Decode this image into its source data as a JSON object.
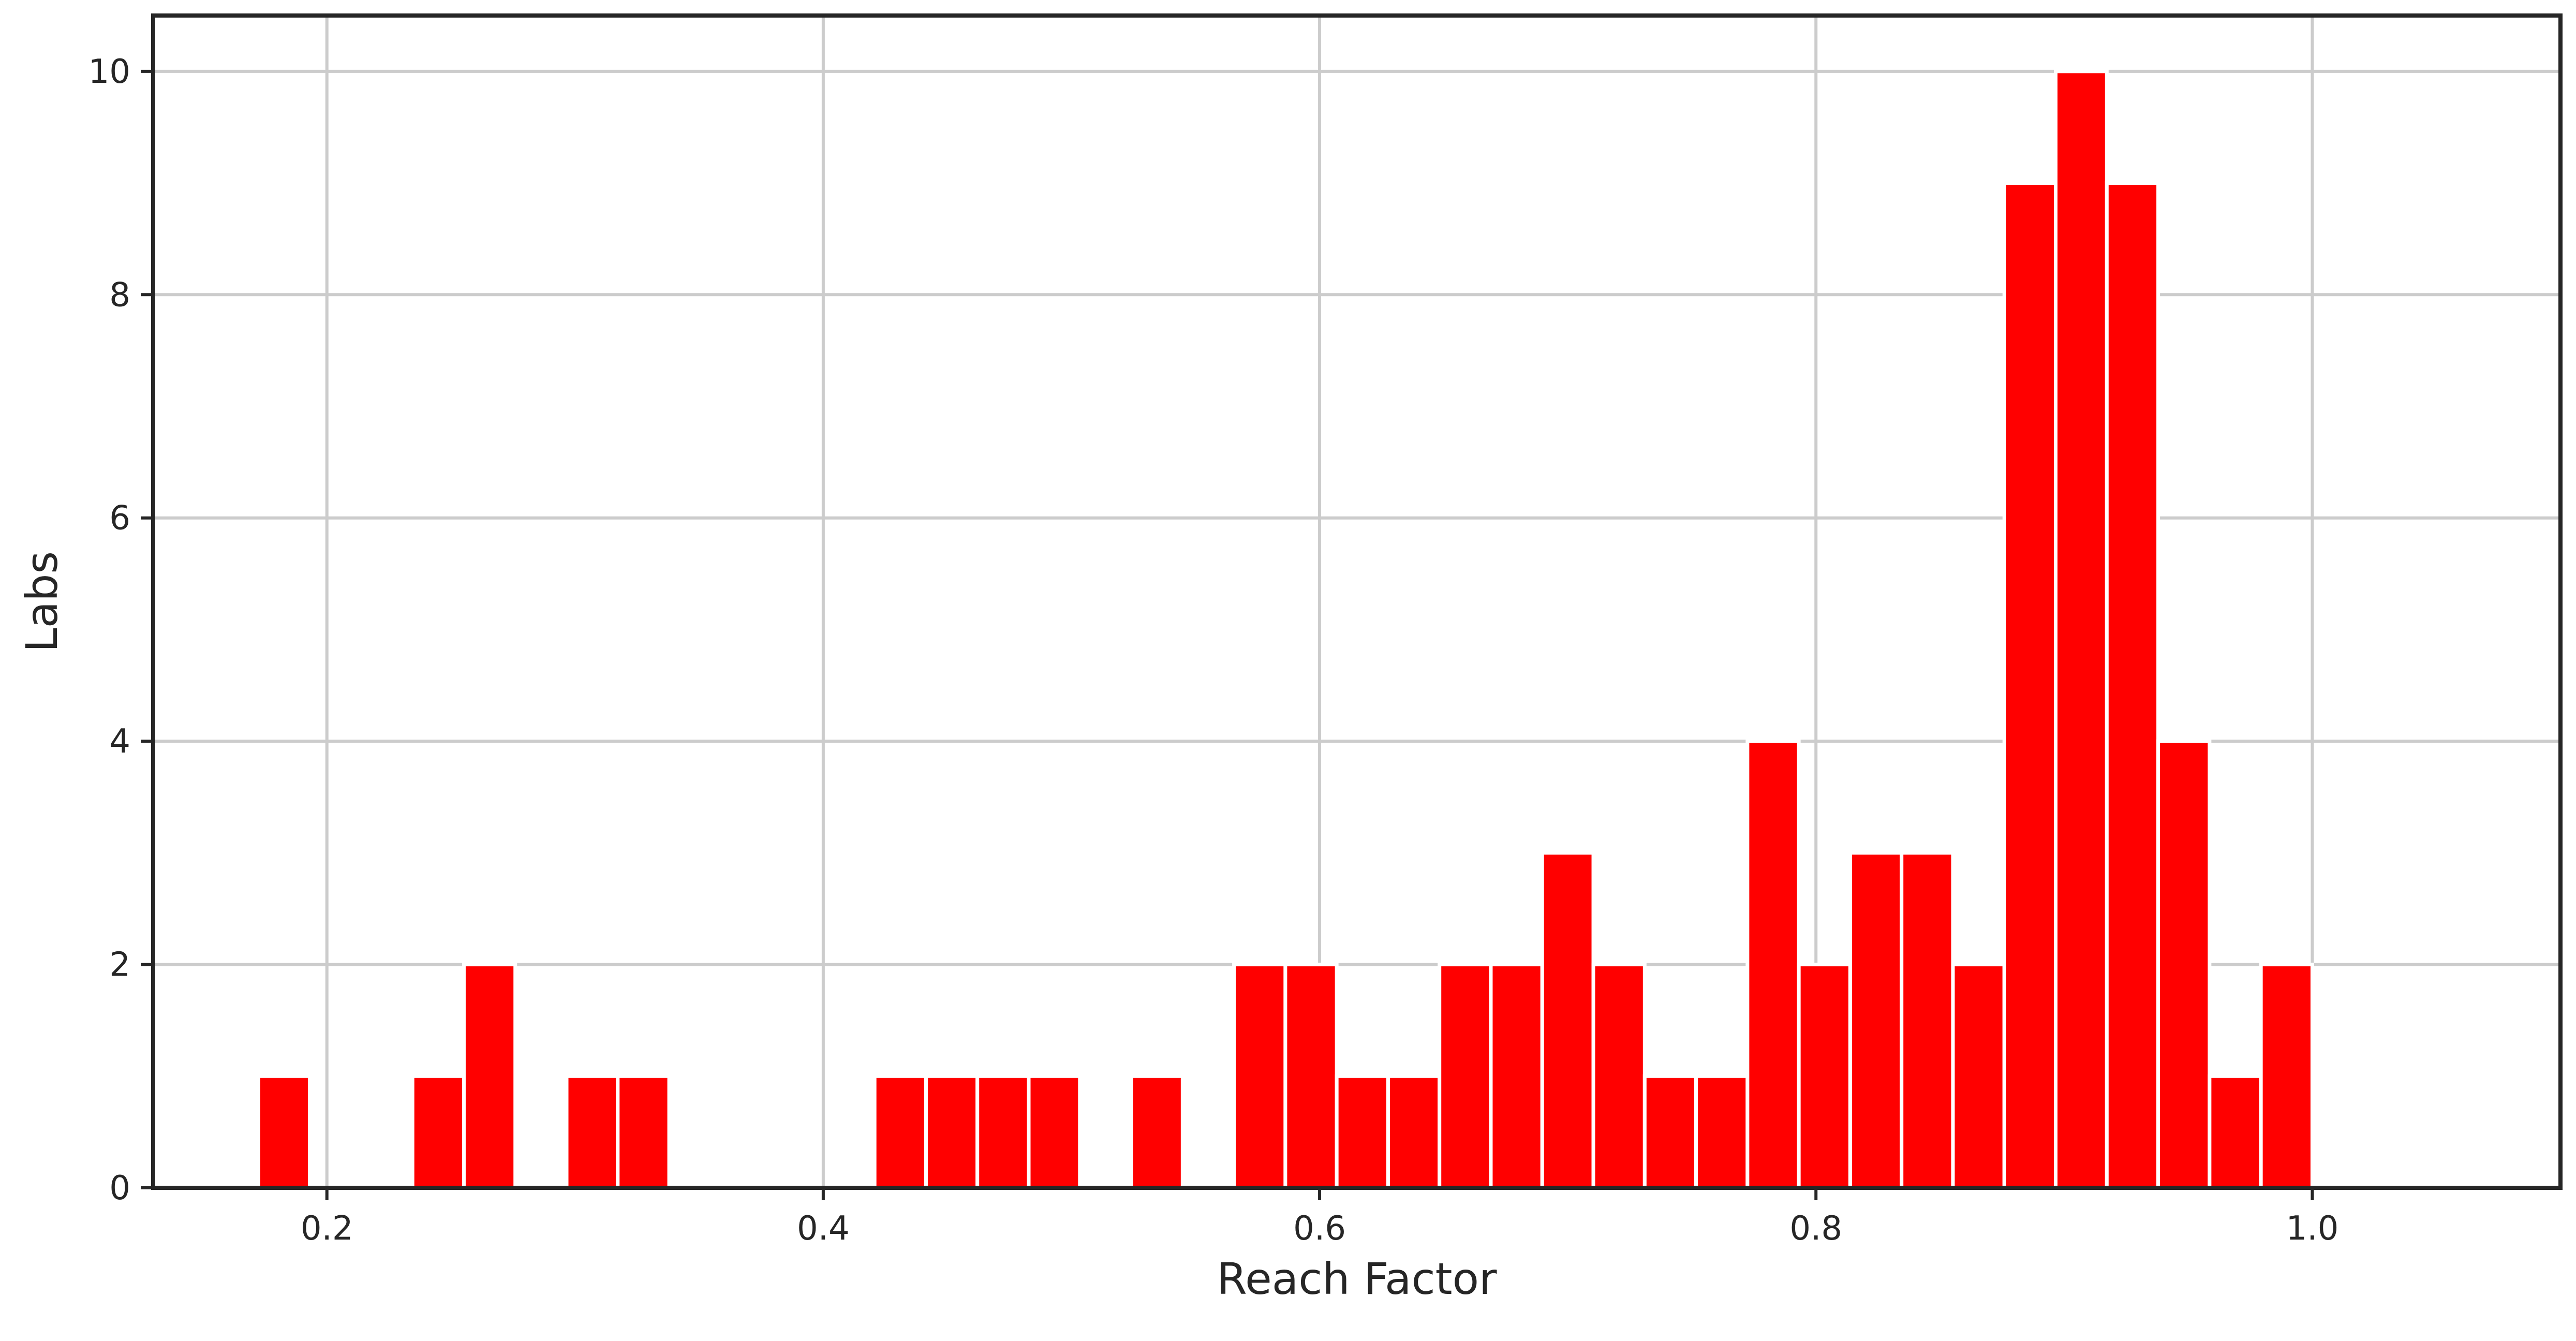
{
  "chart_data": {
    "type": "bar",
    "subtype": "histogram",
    "xlabel": "Reach Factor",
    "ylabel": "Labs",
    "xlim": [
      0.13,
      1.1
    ],
    "ylim": [
      0,
      10.5
    ],
    "xticks": [
      0.2,
      0.4,
      0.6,
      0.8,
      1.0
    ],
    "xtick_labels": [
      "0.2",
      "0.4",
      "0.6",
      "0.8",
      "1.0"
    ],
    "yticks": [
      0,
      2,
      4,
      6,
      8,
      10
    ],
    "ytick_labels": [
      "0",
      "2",
      "4",
      "6",
      "8",
      "10"
    ],
    "grid": true,
    "bar_color": "#ff0000",
    "bin_edges": [
      0.1724,
      0.1931,
      0.2138,
      0.2345,
      0.2552,
      0.2759,
      0.2966,
      0.3172,
      0.3379,
      0.3586,
      0.3793,
      0.4,
      0.4207,
      0.4414,
      0.4621,
      0.4828,
      0.5034,
      0.5241,
      0.5448,
      0.5655,
      0.5862,
      0.6069,
      0.6276,
      0.6483,
      0.669,
      0.6897,
      0.7103,
      0.731,
      0.7517,
      0.7724,
      0.7931,
      0.8138,
      0.8345,
      0.8552,
      0.8759,
      0.8966,
      0.9172,
      0.9379,
      0.9586,
      0.9793,
      1.0
    ],
    "counts": [
      1,
      0,
      0,
      1,
      2,
      0,
      1,
      1,
      0,
      0,
      0,
      0,
      1,
      1,
      1,
      1,
      0,
      1,
      0,
      2,
      2,
      1,
      1,
      2,
      2,
      3,
      2,
      1,
      1,
      4,
      2,
      3,
      3,
      2,
      9,
      10,
      9,
      4,
      1,
      2
    ]
  }
}
